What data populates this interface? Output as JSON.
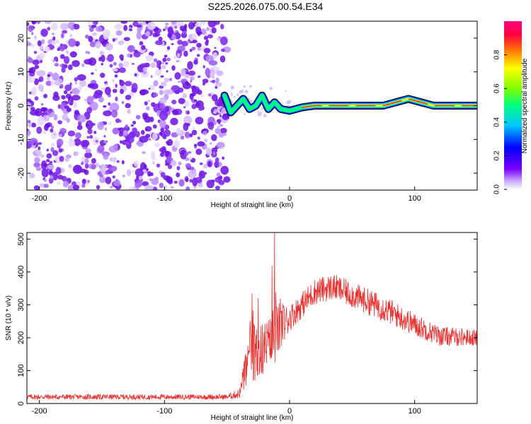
{
  "title": "S225.2026.075.00.54.E34",
  "colors": {
    "noise": "#7a22ee",
    "snr_line": "#e8302e",
    "axes": "#000000"
  },
  "chart_data": [
    {
      "type": "heatmap",
      "title": "S225.2026.075.00.54.E34",
      "xlabel": "Height of straight line (km)",
      "ylabel": "Frequency (Hz)",
      "xlim": [
        -210,
        150
      ],
      "ylim": [
        -25,
        25
      ],
      "x_ticks": [
        -200,
        -100,
        0,
        100
      ],
      "y_ticks": [
        -20,
        -10,
        0,
        10,
        20
      ],
      "noise_region_x": [
        -210,
        -50
      ],
      "signal_trace": [
        {
          "x": -52,
          "y": 3
        },
        {
          "x": -47,
          "y": -2
        },
        {
          "x": -42,
          "y": 0
        },
        {
          "x": -37,
          "y": 2
        },
        {
          "x": -32,
          "y": -1
        },
        {
          "x": -27,
          "y": 0
        },
        {
          "x": -22,
          "y": 3
        },
        {
          "x": -17,
          "y": -1
        },
        {
          "x": -12,
          "y": 1
        },
        {
          "x": -7,
          "y": -1
        },
        {
          "x": 0,
          "y": -1.5
        },
        {
          "x": 10,
          "y": -0.5
        },
        {
          "x": 20,
          "y": 0
        },
        {
          "x": 40,
          "y": 0
        },
        {
          "x": 60,
          "y": 0
        },
        {
          "x": 75,
          "y": 0
        },
        {
          "x": 85,
          "y": 1
        },
        {
          "x": 95,
          "y": 2
        },
        {
          "x": 105,
          "y": 1
        },
        {
          "x": 115,
          "y": 0
        },
        {
          "x": 130,
          "y": 0
        },
        {
          "x": 150,
          "y": 0
        }
      ],
      "colorbar": {
        "label": "Normalized spectral amplitude",
        "range": [
          0,
          1
        ],
        "ticks": [
          "0.0",
          "0.2",
          "0.4",
          "0.6",
          "0.8"
        ],
        "colormap": [
          "#ffffff",
          "#c8a8ff",
          "#7b00ff",
          "#0000ff",
          "#00c8ff",
          "#00ff80",
          "#80ff00",
          "#ffff00",
          "#ff8000",
          "#ff0040",
          "#ff0080"
        ]
      }
    },
    {
      "type": "line",
      "title": "",
      "xlabel": "Height of straight line (km)",
      "ylabel": "SNR (10 * v/v)",
      "xlim": [
        -210,
        150
      ],
      "ylim": [
        0,
        520
      ],
      "x_ticks": [
        -200,
        -100,
        0,
        100
      ],
      "y_ticks": [
        0,
        100,
        200,
        300,
        400,
        500
      ],
      "series": [
        {
          "name": "SNR",
          "envelope": [
            {
              "x": -210,
              "base": 20,
              "amp": 8
            },
            {
              "x": -50,
              "base": 20,
              "amp": 8
            },
            {
              "x": -40,
              "base": 30,
              "amp": 15
            },
            {
              "x": -35,
              "base": 100,
              "amp": 60
            },
            {
              "x": -30,
              "base": 160,
              "amp": 90
            },
            {
              "x": -25,
              "base": 150,
              "amp": 90
            },
            {
              "x": -20,
              "base": 170,
              "amp": 80
            },
            {
              "x": -15,
              "base": 180,
              "amp": 90
            },
            {
              "x": -10,
              "base": 220,
              "amp": 90
            },
            {
              "x": 0,
              "base": 260,
              "amp": 40
            },
            {
              "x": 20,
              "base": 340,
              "amp": 40
            },
            {
              "x": 35,
              "base": 355,
              "amp": 40
            },
            {
              "x": 50,
              "base": 330,
              "amp": 40
            },
            {
              "x": 75,
              "base": 290,
              "amp": 40
            },
            {
              "x": 100,
              "base": 240,
              "amp": 35
            },
            {
              "x": 120,
              "base": 205,
              "amp": 30
            },
            {
              "x": 150,
              "base": 200,
              "amp": 25
            }
          ],
          "spikes": [
            {
              "x": -12,
              "y": 520
            },
            {
              "x": -14,
              "y": 420
            },
            {
              "x": -30,
              "y": 335
            },
            {
              "x": -25,
              "y": 320
            }
          ]
        }
      ]
    }
  ]
}
